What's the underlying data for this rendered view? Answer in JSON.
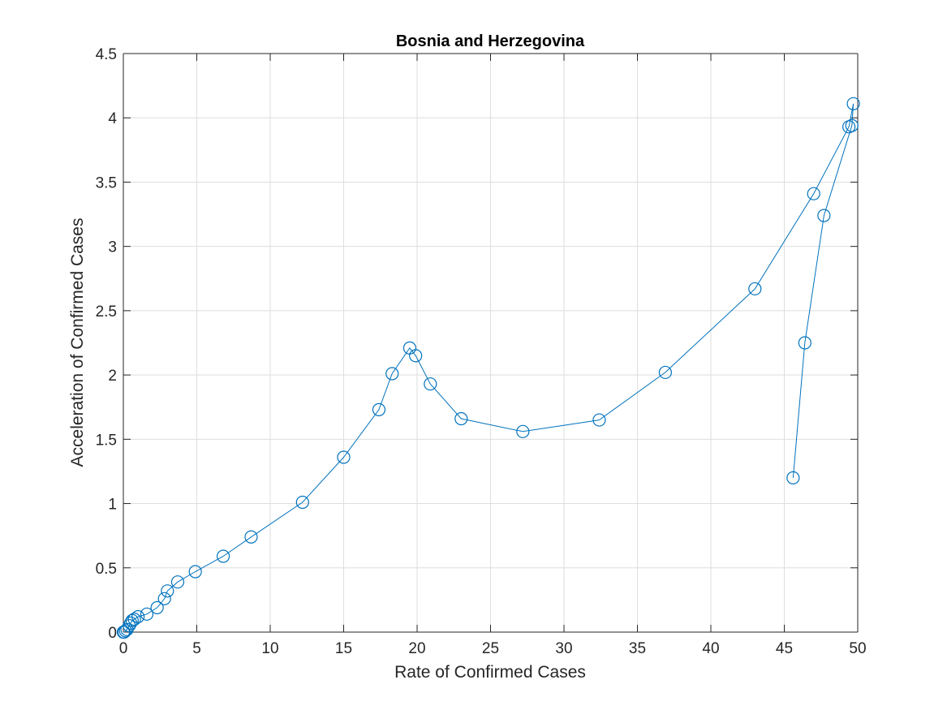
{
  "chart_data": {
    "type": "line",
    "title": "Bosnia and Herzegovina",
    "xlabel": "Rate of Confirmed Cases",
    "ylabel": "Acceleration of Confirmed Cases",
    "xlim": [
      0,
      50
    ],
    "ylim": [
      0,
      4.5
    ],
    "xticks": [
      0,
      5,
      10,
      15,
      20,
      25,
      30,
      35,
      40,
      45,
      50
    ],
    "yticks": [
      0,
      0.5,
      1,
      1.5,
      2,
      2.5,
      3,
      3.5,
      4,
      4.5
    ],
    "xtick_labels": [
      "0",
      "5",
      "10",
      "15",
      "20",
      "25",
      "30",
      "35",
      "40",
      "45",
      "50"
    ],
    "ytick_labels": [
      "0",
      "0.5",
      "1",
      "1.5",
      "2",
      "2.5",
      "3",
      "3.5",
      "4",
      "4.5"
    ],
    "grid": true,
    "marker": "circle",
    "color": "#0072BD",
    "series": [
      {
        "x": [
          0.0,
          0.05,
          0.15,
          0.25,
          0.4,
          0.5,
          0.6,
          0.75,
          1.0,
          1.6,
          2.3,
          2.8,
          3.0,
          3.7,
          4.9,
          6.8,
          8.7,
          12.2,
          15.0,
          17.4,
          18.3,
          19.5,
          19.9,
          20.9,
          23.0,
          27.2,
          32.4,
          36.9,
          43.0,
          47.0,
          49.4,
          49.7,
          49.6,
          47.7,
          46.4,
          45.6
        ],
        "y": [
          0.0,
          0.0,
          0.01,
          0.02,
          0.05,
          0.07,
          0.09,
          0.1,
          0.12,
          0.14,
          0.19,
          0.26,
          0.32,
          0.39,
          0.47,
          0.59,
          0.74,
          1.01,
          1.36,
          1.73,
          2.01,
          2.21,
          2.15,
          1.93,
          1.66,
          1.56,
          1.65,
          2.02,
          2.67,
          3.41,
          3.93,
          4.11,
          3.94,
          3.24,
          2.25,
          1.2
        ]
      }
    ]
  }
}
